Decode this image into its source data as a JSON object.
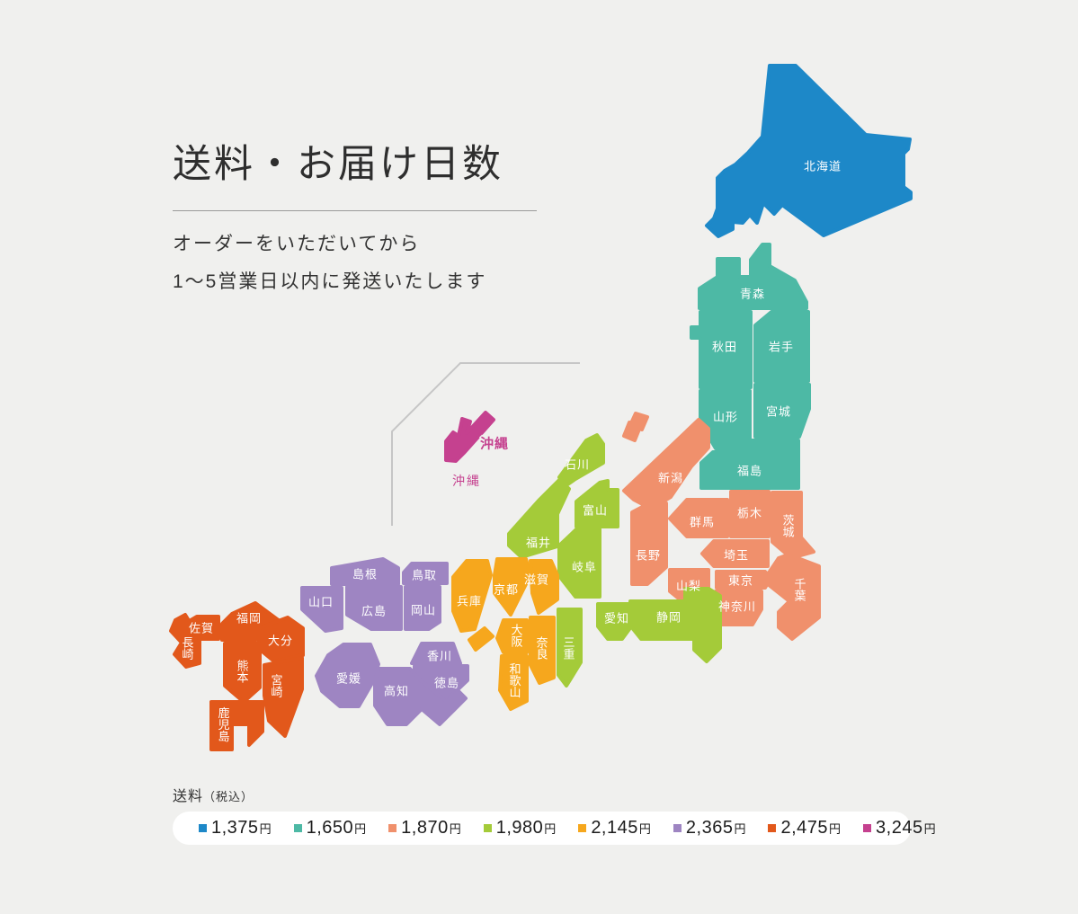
{
  "header": {
    "title": "送料・お届け日数",
    "subtitle_line1": "オーダーをいただいてから",
    "subtitle_line2": "1〜5営業日以内に発送いたします"
  },
  "legend": {
    "label_main": "送料",
    "label_sub": "（税込）",
    "items": [
      {
        "price": "1,375",
        "unit": "円",
        "group": "hokkaido"
      },
      {
        "price": "1,650",
        "unit": "円",
        "group": "tohoku"
      },
      {
        "price": "1,870",
        "unit": "円",
        "group": "kanto_shinetsu"
      },
      {
        "price": "1,980",
        "unit": "円",
        "group": "chubu_tokai"
      },
      {
        "price": "2,145",
        "unit": "円",
        "group": "kansai"
      },
      {
        "price": "2,365",
        "unit": "円",
        "group": "chugoku_shikoku"
      },
      {
        "price": "2,475",
        "unit": "円",
        "group": "kyushu"
      },
      {
        "price": "3,245",
        "unit": "円",
        "group": "okinawa"
      }
    ]
  },
  "fee_groups": {
    "hokkaido": {
      "fee": "1,375円",
      "color": "#1d88c8"
    },
    "tohoku": {
      "fee": "1,650円",
      "color": "#4db9a5"
    },
    "kanto_shinetsu": {
      "fee": "1,870円",
      "color": "#f0906c"
    },
    "chubu_tokai": {
      "fee": "1,980円",
      "color": "#a4cb39"
    },
    "kansai": {
      "fee": "2,145円",
      "color": "#f6a71d"
    },
    "chugoku_shikoku": {
      "fee": "2,365円",
      "color": "#9e85c2"
    },
    "kyushu": {
      "fee": "2,475円",
      "color": "#e2581b"
    },
    "okinawa": {
      "fee": "3,245円",
      "color": "#c5418f"
    }
  },
  "map": {
    "okinawa_inset_label": "沖縄",
    "okinawa_caption": "沖縄",
    "prefectures": [
      {
        "id": "hokkaido",
        "name": "北海道",
        "group": "hokkaido"
      },
      {
        "id": "aomori",
        "name": "青森",
        "group": "tohoku"
      },
      {
        "id": "akita",
        "name": "秋田",
        "group": "tohoku"
      },
      {
        "id": "iwate",
        "name": "岩手",
        "group": "tohoku"
      },
      {
        "id": "yamagata",
        "name": "山形",
        "group": "tohoku"
      },
      {
        "id": "miyagi",
        "name": "宮城",
        "group": "tohoku"
      },
      {
        "id": "fukushima",
        "name": "福島",
        "group": "tohoku"
      },
      {
        "id": "niigata",
        "name": "新潟",
        "group": "kanto_shinetsu"
      },
      {
        "id": "gunma",
        "name": "群馬",
        "group": "kanto_shinetsu"
      },
      {
        "id": "tochigi",
        "name": "栃木",
        "group": "kanto_shinetsu"
      },
      {
        "id": "ibaraki",
        "name": "茨城",
        "group": "kanto_shinetsu",
        "vertical": true
      },
      {
        "id": "nagano",
        "name": "長野",
        "group": "kanto_shinetsu"
      },
      {
        "id": "saitama",
        "name": "埼玉",
        "group": "kanto_shinetsu"
      },
      {
        "id": "yamanashi",
        "name": "山梨",
        "group": "kanto_shinetsu"
      },
      {
        "id": "tokyo",
        "name": "東京",
        "group": "kanto_shinetsu"
      },
      {
        "id": "kanagawa",
        "name": "神奈川",
        "group": "kanto_shinetsu"
      },
      {
        "id": "chiba",
        "name": "千葉",
        "group": "kanto_shinetsu",
        "vertical": true
      },
      {
        "id": "ishikawa",
        "name": "石川",
        "group": "chubu_tokai"
      },
      {
        "id": "toyama",
        "name": "富山",
        "group": "chubu_tokai"
      },
      {
        "id": "fukui",
        "name": "福井",
        "group": "chubu_tokai"
      },
      {
        "id": "gifu",
        "name": "岐阜",
        "group": "chubu_tokai"
      },
      {
        "id": "aichi",
        "name": "愛知",
        "group": "chubu_tokai"
      },
      {
        "id": "shizuoka",
        "name": "静岡",
        "group": "chubu_tokai"
      },
      {
        "id": "mie",
        "name": "三重",
        "group": "chubu_tokai",
        "vertical": true
      },
      {
        "id": "shiga",
        "name": "滋賀",
        "group": "kansai"
      },
      {
        "id": "kyoto",
        "name": "京都",
        "group": "kansai"
      },
      {
        "id": "hyogo",
        "name": "兵庫",
        "group": "kansai"
      },
      {
        "id": "osaka",
        "name": "大阪",
        "group": "kansai",
        "vertical": true
      },
      {
        "id": "nara",
        "name": "奈良",
        "group": "kansai",
        "vertical": true
      },
      {
        "id": "wakayama",
        "name": "和歌山",
        "group": "kansai",
        "vertical": true
      },
      {
        "id": "shimane",
        "name": "島根",
        "group": "chugoku_shikoku"
      },
      {
        "id": "tottori",
        "name": "鳥取",
        "group": "chugoku_shikoku"
      },
      {
        "id": "yamaguchi",
        "name": "山口",
        "group": "chugoku_shikoku"
      },
      {
        "id": "hiroshima",
        "name": "広島",
        "group": "chugoku_shikoku"
      },
      {
        "id": "okayama",
        "name": "岡山",
        "group": "chugoku_shikoku"
      },
      {
        "id": "kagawa",
        "name": "香川",
        "group": "chugoku_shikoku"
      },
      {
        "id": "tokushima",
        "name": "徳島",
        "group": "chugoku_shikoku"
      },
      {
        "id": "ehime",
        "name": "愛媛",
        "group": "chugoku_shikoku"
      },
      {
        "id": "kochi",
        "name": "高知",
        "group": "chugoku_shikoku"
      },
      {
        "id": "fukuoka",
        "name": "福岡",
        "group": "kyushu"
      },
      {
        "id": "saga",
        "name": "佐賀",
        "group": "kyushu"
      },
      {
        "id": "nagasaki",
        "name": "長崎",
        "group": "kyushu",
        "vertical": true
      },
      {
        "id": "oita",
        "name": "大分",
        "group": "kyushu"
      },
      {
        "id": "kumamoto",
        "name": "熊本",
        "group": "kyushu",
        "vertical": true
      },
      {
        "id": "miyazaki",
        "name": "宮崎",
        "group": "kyushu",
        "vertical": true
      },
      {
        "id": "kagoshima",
        "name": "鹿児島",
        "group": "kyushu",
        "vertical": true
      },
      {
        "id": "okinawa",
        "name": "沖縄",
        "group": "okinawa"
      }
    ]
  }
}
